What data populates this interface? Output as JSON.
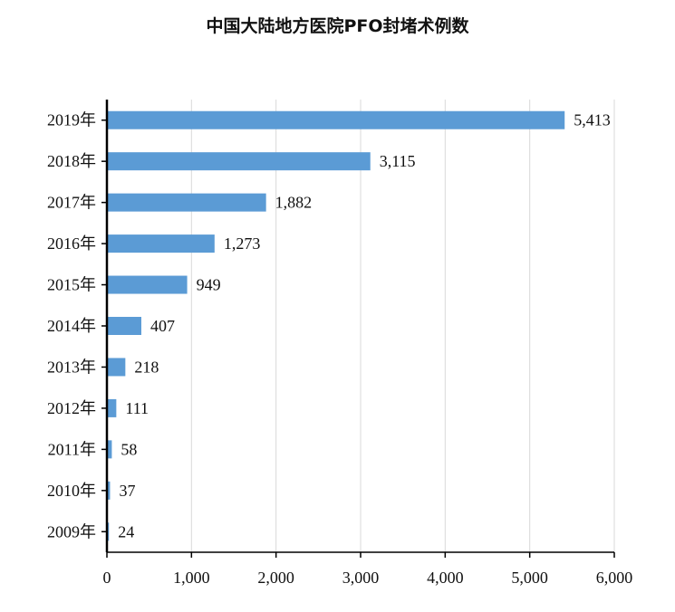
{
  "chart_data": {
    "type": "bar",
    "orientation": "horizontal",
    "title": "中国大陆地方医院PFO封堵术例数",
    "categories": [
      "2019年",
      "2018年",
      "2017年",
      "2016年",
      "2015年",
      "2014年",
      "2013年",
      "2012年",
      "2011年",
      "2010年",
      "2009年"
    ],
    "values": [
      5413,
      3115,
      1882,
      1273,
      949,
      407,
      218,
      111,
      58,
      37,
      24
    ],
    "data_labels": [
      "5,413",
      "3,115",
      "1,882",
      "1,273",
      "949",
      "407",
      "218",
      "111",
      "58",
      "37",
      "24"
    ],
    "xlim": [
      0,
      6000
    ],
    "xticks": [
      0,
      1000,
      2000,
      3000,
      4000,
      5000,
      6000
    ],
    "xtick_labels": [
      "0",
      "1,000",
      "2,000",
      "3,000",
      "4,000",
      "5,000",
      "6,000"
    ],
    "grid": "vertical",
    "bar_color": "#5b9bd5",
    "grid_color": "#d9d9d9",
    "axis_color": "#000000",
    "legend": "none"
  }
}
